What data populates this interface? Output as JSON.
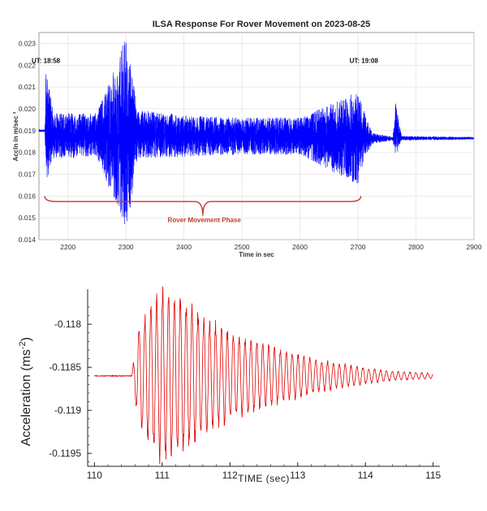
{
  "chart_data": [
    {
      "type": "line",
      "title": "ILSA Response For Rover Movement on 2023-08-25",
      "xlabel": "Time in sec",
      "ylabel": "Accln in m/sec ²",
      "xlim": [
        2150,
        2900
      ],
      "ylim": [
        0.014,
        0.0235
      ],
      "grid": true,
      "x_ticks": [
        "2200",
        "2300",
        "2400",
        "2500",
        "2600",
        "2700",
        "2800",
        "2900"
      ],
      "y_ticks": [
        "0.014",
        "0.015",
        "0.016",
        "0.017",
        "0.018",
        "0.019",
        "0.020",
        "0.021",
        "0.022",
        "0.023"
      ],
      "series_color": "#0000ff",
      "baseline": 0.019,
      "baseline_after": 0.01865,
      "envelope": [
        {
          "x": 2150,
          "low": 0.01895,
          "high": 0.01905
        },
        {
          "x": 2160,
          "low": 0.01895,
          "high": 0.01905
        },
        {
          "x": 2162,
          "low": 0.0166,
          "high": 0.022
        },
        {
          "x": 2175,
          "low": 0.0177,
          "high": 0.0198
        },
        {
          "x": 2250,
          "low": 0.0178,
          "high": 0.0198
        },
        {
          "x": 2300,
          "low": 0.0142,
          "high": 0.0234
        },
        {
          "x": 2320,
          "low": 0.0177,
          "high": 0.02
        },
        {
          "x": 2400,
          "low": 0.0178,
          "high": 0.0197
        },
        {
          "x": 2500,
          "low": 0.0179,
          "high": 0.0196
        },
        {
          "x": 2600,
          "low": 0.0179,
          "high": 0.0196
        },
        {
          "x": 2700,
          "low": 0.0165,
          "high": 0.0208
        },
        {
          "x": 2712,
          "low": 0.0178,
          "high": 0.0198
        },
        {
          "x": 2725,
          "low": 0.0184,
          "high": 0.0189
        },
        {
          "x": 2760,
          "low": 0.01855,
          "high": 0.0187
        },
        {
          "x": 2765,
          "low": 0.0178,
          "high": 0.0203
        },
        {
          "x": 2775,
          "low": 0.01855,
          "high": 0.01875
        },
        {
          "x": 2900,
          "low": 0.0186,
          "high": 0.0187
        }
      ],
      "annotations": [
        {
          "text": "UT: 18:58",
          "x": 2162,
          "y": 0.0221,
          "color": "#111111"
        },
        {
          "text": "UT: 19:08",
          "x": 2710,
          "y": 0.0221,
          "color": "#111111"
        },
        {
          "text": "Rover Movement Phase",
          "x": 2435,
          "y": 0.0148,
          "color": "#c0392b"
        }
      ],
      "bracket": {
        "x_start": 2160,
        "x_end": 2705,
        "y_top": 0.016,
        "y_tip": 0.0151,
        "color": "#c0392b"
      }
    },
    {
      "type": "line",
      "title": "",
      "xlabel": "TIME (sec)",
      "ylabel": "Acceleration (ms",
      "ylabel_sup": "-2",
      "ylabel_close": ")",
      "xlim": [
        109.9,
        115.1
      ],
      "ylim": [
        -0.11965,
        -0.11765
      ],
      "grid": false,
      "x_ticks": [
        "110",
        "111",
        "112",
        "113",
        "114",
        "115"
      ],
      "y_ticks": [
        "-0.118",
        "-0.1185",
        "-0.119",
        "-0.1195"
      ],
      "series_color": "#e00000",
      "baseline": -0.1186,
      "onset": 110.55,
      "amplitude_envelope": [
        {
          "x": 110.0,
          "a": 5e-06
        },
        {
          "x": 110.55,
          "a": 5e-06
        },
        {
          "x": 110.65,
          "a": 0.00055
        },
        {
          "x": 111.0,
          "a": 0.00095
        },
        {
          "x": 111.3,
          "a": 0.00085
        },
        {
          "x": 111.7,
          "a": 0.0006
        },
        {
          "x": 112.2,
          "a": 0.00042
        },
        {
          "x": 112.8,
          "a": 0.00028
        },
        {
          "x": 113.3,
          "a": 0.00018
        },
        {
          "x": 113.9,
          "a": 0.0001
        },
        {
          "x": 114.4,
          "a": 5e-05
        },
        {
          "x": 115.0,
          "a": 3e-05
        }
      ]
    }
  ]
}
